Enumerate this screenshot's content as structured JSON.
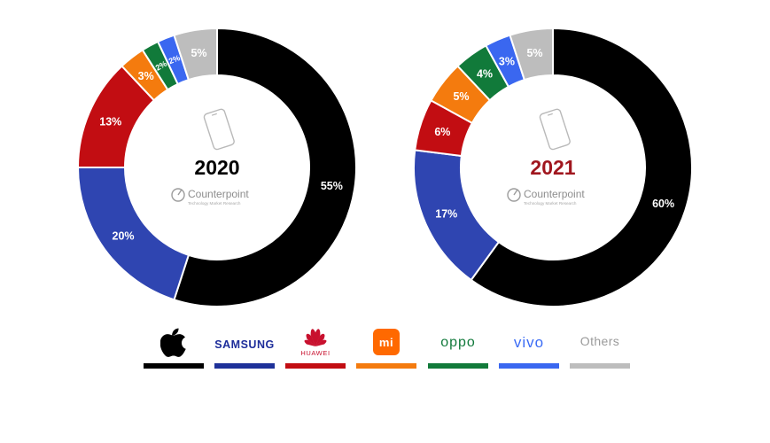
{
  "chart_data": [
    {
      "type": "pie",
      "title": "2020",
      "title_color": "#000000",
      "order": [
        "Apple",
        "Samsung",
        "Huawei",
        "Xiaomi",
        "OPPO",
        "vivo",
        "Others"
      ],
      "values": [
        55,
        20,
        13,
        3,
        2,
        2,
        5
      ],
      "labels": [
        "55%",
        "20%",
        "13%",
        "3%",
        "2%",
        "2%",
        "5%"
      ]
    },
    {
      "type": "pie",
      "title": "2021",
      "title_color": "#a0161e",
      "order": [
        "Apple",
        "Samsung",
        "Huawei",
        "Xiaomi",
        "OPPO",
        "vivo",
        "Others"
      ],
      "values": [
        60,
        17,
        6,
        5,
        4,
        3,
        5
      ],
      "labels": [
        "60%",
        "17%",
        "6%",
        "5%",
        "4%",
        "3%",
        "5%"
      ]
    }
  ],
  "colors": {
    "Apple": "#000000",
    "Samsung": "#2f45b1",
    "Huawei": "#c20d12",
    "Xiaomi": "#f47b0e",
    "OPPO": "#117a3a",
    "vivo": "#3a67f0",
    "Others": "#bdbdbd"
  },
  "watermark": {
    "brand": "Counterpoint",
    "tagline": "Technology Market Research",
    "icon": "phone-outline-icon"
  },
  "legend": [
    {
      "key": "Apple",
      "logo": "apple-logo",
      "text": ""
    },
    {
      "key": "Samsung",
      "logo": "samsung-logo",
      "text": "SAMSUNG"
    },
    {
      "key": "Huawei",
      "logo": "huawei-logo",
      "text": "HUAWEI"
    },
    {
      "key": "Xiaomi",
      "logo": "xiaomi-logo",
      "text": "mi"
    },
    {
      "key": "OPPO",
      "logo": "oppo-logo",
      "text": "oppo"
    },
    {
      "key": "vivo",
      "logo": "vivo-logo",
      "text": "vivo"
    },
    {
      "key": "Others",
      "logo": "others-text",
      "text": "Others"
    }
  ]
}
